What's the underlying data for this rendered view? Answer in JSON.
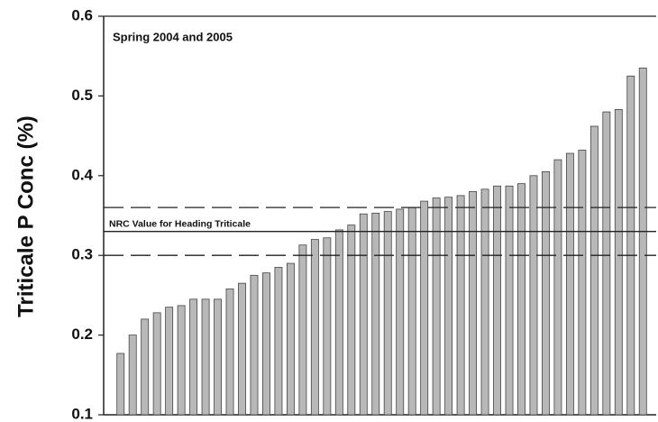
{
  "chart_data": {
    "type": "bar",
    "ylabel": "Triticale P Conc (%)",
    "annotation": "Spring 2004 and 2005",
    "values": [
      0.177,
      0.2,
      0.22,
      0.228,
      0.235,
      0.237,
      0.245,
      0.245,
      0.245,
      0.258,
      0.265,
      0.275,
      0.278,
      0.285,
      0.29,
      0.313,
      0.32,
      0.322,
      0.332,
      0.338,
      0.352,
      0.353,
      0.355,
      0.358,
      0.36,
      0.368,
      0.372,
      0.373,
      0.375,
      0.38,
      0.383,
      0.387,
      0.387,
      0.39,
      0.4,
      0.405,
      0.42,
      0.428,
      0.432,
      0.462,
      0.48,
      0.483,
      0.525,
      0.535
    ],
    "color": "#b8b8b8",
    "ylim": [
      0.1,
      0.6
    ],
    "yticks": [
      0.1,
      0.2,
      0.3,
      0.4,
      0.5,
      0.6
    ],
    "reference_lines": [
      {
        "value": 0.33,
        "label": "NRC Value  for Heading Triticale",
        "style": "solid"
      },
      {
        "value": 0.36,
        "style": "dashed"
      },
      {
        "value": 0.3,
        "style": "dashed"
      }
    ]
  }
}
